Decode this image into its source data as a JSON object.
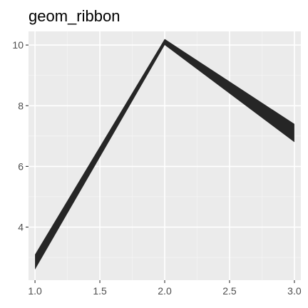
{
  "chart_data": {
    "type": "area",
    "title": "geom_ribbon",
    "xlabel": "",
    "ylabel": "",
    "xlim": [
      0.95,
      3.05
    ],
    "ylim": [
      2.25,
      10.45
    ],
    "x_ticks": [
      1.0,
      1.5,
      2.0,
      2.5,
      3.0
    ],
    "x_tick_labels": [
      "1.0",
      "1.5",
      "2.0",
      "2.5",
      "3.0"
    ],
    "y_ticks": [
      4,
      6,
      8,
      10
    ],
    "y_tick_labels": [
      "4",
      "6",
      "8",
      "10"
    ],
    "grid": true,
    "legend": "none",
    "series": [
      {
        "x": [
          1.0,
          2.0,
          3.0
        ],
        "ymin": [
          2.6,
          10.0,
          6.8
        ],
        "ymax": [
          3.1,
          10.2,
          7.4
        ]
      }
    ],
    "colors": {
      "panel_background": "#ebebeb",
      "grid_major": "#ffffff",
      "grid_minor": "#f5f5f5",
      "ribbon_fill": "#262626",
      "tick_mark": "#333333"
    }
  }
}
